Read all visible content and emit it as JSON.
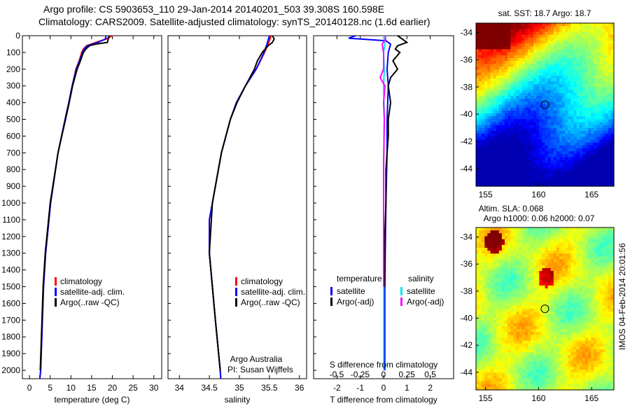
{
  "header": {
    "line1": "Argo profile: CS 5903653_110 29-Jan-2014 20140201_503 39.308S 160.598E",
    "line2": "Climatology: CARS2009. Satellite-adjusted climatology: synTS_20140128.nc (1.6d earlier)"
  },
  "side_label": "IMOS 04-Feb-2014 20:01:56",
  "colors": {
    "clim": "#ff0000",
    "sat": "#0000ff",
    "argo": "#000000",
    "s_sat": "#00e5ee",
    "s_argo": "#ff00ff"
  },
  "chart_data": [
    {
      "type": "line",
      "id": "temperature",
      "xlabel": "temperature (deg C)",
      "ylabel": "",
      "xlim": [
        -1.7,
        31.9
      ],
      "ylim": [
        2050,
        0
      ],
      "xticks": [
        "0",
        "5",
        "10",
        "15",
        "20",
        "25",
        "30"
      ],
      "xtickvals": [
        0,
        5,
        10,
        15,
        20,
        25,
        30
      ],
      "yticks": [
        0,
        100,
        200,
        300,
        400,
        500,
        600,
        700,
        800,
        900,
        1000,
        1100,
        1200,
        1300,
        1400,
        1500,
        1600,
        1700,
        1800,
        1900,
        2000
      ],
      "legend": [
        "climatology",
        "satellite-adj. clim.",
        "Argo(..raw -QC)"
      ],
      "series": [
        {
          "name": "climatology",
          "depth": [
            0,
            20,
            40,
            60,
            80,
            100,
            150,
            200,
            300,
            400,
            500,
            700,
            1000,
            1300,
            1500,
            2000,
            2050
          ],
          "values": [
            20.0,
            18.5,
            16.0,
            13.8,
            13.0,
            12.6,
            12.0,
            11.2,
            10.3,
            9.5,
            8.6,
            6.9,
            5.1,
            3.9,
            3.4,
            2.7,
            2.5
          ]
        },
        {
          "name": "satellite-adj. clim.",
          "depth": [
            0,
            20,
            40,
            60,
            80,
            100,
            150,
            200,
            300,
            400,
            500,
            700,
            1000,
            1300,
            1500,
            2000,
            2050
          ],
          "values": [
            18.5,
            18.3,
            16.5,
            14.0,
            13.2,
            12.8,
            12.1,
            11.3,
            10.3,
            9.5,
            8.6,
            6.9,
            5.1,
            3.9,
            3.4,
            2.7,
            2.5
          ]
        },
        {
          "name": "Argo(..raw -QC)",
          "depth": [
            0,
            20,
            40,
            50,
            60,
            80,
            100,
            150,
            200,
            300,
            400,
            500,
            700,
            1000,
            1300,
            1500,
            2000
          ],
          "values": [
            19.2,
            19.0,
            18.8,
            16.0,
            14.5,
            13.6,
            13.0,
            12.3,
            11.5,
            10.4,
            9.6,
            8.7,
            6.9,
            5.0,
            3.8,
            3.3,
            2.6
          ]
        }
      ]
    },
    {
      "type": "line",
      "id": "salinity",
      "xlabel": "salinity",
      "xlim": [
        33.81,
        36.12
      ],
      "ylim": [
        2050,
        0
      ],
      "xticks": [
        "34",
        "34.5",
        "35",
        "35.5",
        "36"
      ],
      "xtickvals": [
        34,
        34.5,
        35,
        35.5,
        36
      ],
      "legend": [
        "climatology",
        "satellite-adj. clim.",
        "Argo(..raw -QC)"
      ],
      "annotation": [
        "Argo Australia",
        "PI: Susan Wijffels"
      ],
      "series": [
        {
          "name": "climatology",
          "depth": [
            0,
            50,
            100,
            200,
            300,
            400,
            500,
            700,
            1000,
            1100,
            1300,
            1500,
            1700,
            2000,
            2050
          ],
          "values": [
            35.53,
            35.48,
            35.42,
            35.28,
            35.1,
            34.95,
            34.85,
            34.7,
            34.55,
            34.5,
            34.5,
            34.55,
            34.6,
            34.68,
            34.69
          ]
        },
        {
          "name": "satellite-adj. clim.",
          "depth": [
            0,
            50,
            100,
            200,
            300,
            400,
            500,
            700,
            1000,
            1100,
            1300,
            1500,
            1700,
            2000,
            2050
          ],
          "values": [
            35.5,
            35.46,
            35.41,
            35.28,
            35.1,
            34.95,
            34.85,
            34.7,
            34.55,
            34.5,
            34.5,
            34.55,
            34.6,
            34.68,
            34.69
          ]
        },
        {
          "name": "Argo(..raw -QC)",
          "depth": [
            0,
            20,
            40,
            60,
            100,
            150,
            200,
            300,
            400,
            500,
            700,
            1000,
            1300,
            1500,
            1700,
            2000
          ],
          "values": [
            35.55,
            35.58,
            35.55,
            35.48,
            35.38,
            35.3,
            35.25,
            35.1,
            34.96,
            34.85,
            34.7,
            34.55,
            34.5,
            34.55,
            34.6,
            34.68
          ]
        }
      ]
    },
    {
      "type": "line",
      "id": "difference",
      "xlabel": "T difference from climatology",
      "xlabel_top": "S difference from climatology",
      "xlim": [
        -3,
        3
      ],
      "ylim": [
        2050,
        0
      ],
      "xticks": [
        "-2",
        "-1",
        "0",
        "1",
        "2"
      ],
      "xtickvals": [
        -2,
        -1,
        0,
        1,
        2
      ],
      "xticks_top": [
        "-0.5",
        "-0.25",
        "0",
        "0.25",
        "0.5"
      ],
      "legend_t_title": "temperature",
      "legend_s_title": "salinity",
      "legend": [
        "satellite",
        "Argo(-adj)",
        "satellite",
        "Argo(-adj)"
      ],
      "series": [
        {
          "name": "T satellite",
          "depth": [
            0,
            15,
            30,
            50,
            100,
            200,
            300,
            500,
            700,
            1000,
            1500,
            2000
          ],
          "values": [
            -1.2,
            -1.5,
            0.1,
            0.3,
            0.2,
            0.15,
            0.2,
            0.15,
            0.15,
            0.1,
            0.05,
            0.05
          ]
        },
        {
          "name": "T Argo(-adj)",
          "depth": [
            0,
            20,
            40,
            60,
            80,
            100,
            150,
            200,
            250,
            300,
            400,
            500,
            600,
            800,
            1000,
            1200,
            1500
          ],
          "values": [
            0.6,
            0.8,
            1.0,
            0.6,
            0.5,
            0.7,
            0.4,
            0.6,
            0.3,
            0.2,
            0.3,
            0.2,
            0.2,
            0.1,
            0.1,
            0.05,
            0.05
          ]
        },
        {
          "name": "S satellite",
          "depth": [
            0,
            50,
            100,
            200,
            300,
            500,
            800,
            1000,
            1500,
            2000
          ],
          "values": [
            0.0,
            0.02,
            0.0,
            0.01,
            0.0,
            0.01,
            0.0,
            0.0,
            0.0,
            0.0
          ]
        },
        {
          "name": "S Argo(-adj)",
          "depth": [
            0,
            20,
            50,
            100,
            200,
            250,
            300,
            400,
            500,
            800,
            1000,
            1500
          ],
          "values": [
            0.02,
            0.03,
            -0.02,
            0.0,
            0.0,
            -0.05,
            0.02,
            0.0,
            0.01,
            0.0,
            0.0,
            0.0
          ]
        }
      ]
    },
    {
      "type": "heatmap",
      "id": "sst_map",
      "title": "sat. SST: 18.7 Argo: 18.7",
      "xlim": [
        154.1,
        167.1
      ],
      "ylim": [
        -45.3,
        -33.3
      ],
      "xticks": [
        "155",
        "160",
        "165"
      ],
      "yticks": [
        "-34",
        "-36",
        "-38",
        "-40",
        "-42",
        "-44"
      ],
      "marker": [
        160.598,
        -39.308
      ]
    },
    {
      "type": "heatmap",
      "id": "sla_map",
      "title": [
        "Altim. SLA: 0.068",
        "Argo h1000: 0.06 h2000: 0.07"
      ],
      "xlim": [
        154.1,
        167.1
      ],
      "ylim": [
        -45.3,
        -33.3
      ],
      "xticks": [
        "155",
        "160",
        "165"
      ],
      "yticks": [
        "-34",
        "-36",
        "-38",
        "-40",
        "-42",
        "-44"
      ],
      "marker": [
        160.598,
        -39.308
      ]
    }
  ]
}
